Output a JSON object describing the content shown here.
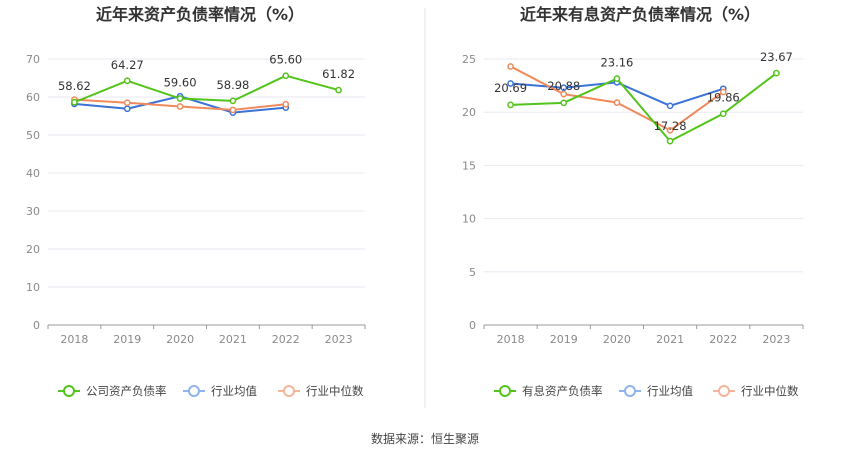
{
  "source_text": "数据来源：恒生聚源",
  "chart_data": [
    {
      "type": "line",
      "title": "近年来资产负债率情况（%）",
      "categories": [
        "2018",
        "2019",
        "2020",
        "2021",
        "2022",
        "2023"
      ],
      "ylim": [
        0,
        70
      ],
      "yticks": [
        0,
        10,
        20,
        30,
        40,
        50,
        60,
        70
      ],
      "labeled_series": "公司资产负债率",
      "series": [
        {
          "name": "公司资产负债率",
          "color": "#52c41a",
          "values": [
            58.62,
            64.27,
            59.6,
            58.98,
            65.6,
            61.82
          ],
          "labels": [
            "58.62",
            "64.27",
            "59.60",
            "58.98",
            "65.60",
            "61.82"
          ]
        },
        {
          "name": "行业均值",
          "color": "#3a72d8",
          "values": [
            58.2,
            56.9,
            60.2,
            55.9,
            57.2,
            null
          ]
        },
        {
          "name": "行业中位数",
          "color": "#f08a5d",
          "values": [
            59.3,
            58.5,
            57.5,
            56.6,
            58.1,
            null
          ]
        }
      ]
    },
    {
      "type": "line",
      "title": "近年来有息资产负债率情况（%）",
      "categories": [
        "2018",
        "2019",
        "2020",
        "2021",
        "2022",
        "2023"
      ],
      "ylim": [
        0,
        25
      ],
      "yticks": [
        0,
        5,
        10,
        15,
        20,
        25
      ],
      "labeled_series": "有息资产负债率",
      "series": [
        {
          "name": "有息资产负债率",
          "color": "#52c41a",
          "values": [
            20.69,
            20.88,
            23.16,
            17.28,
            19.86,
            23.67
          ],
          "labels": [
            "20.69",
            "20.88",
            "23.16",
            "17.28",
            "19.86",
            "23.67"
          ]
        },
        {
          "name": "行业均值",
          "color": "#3a72d8",
          "values": [
            22.7,
            22.3,
            22.8,
            20.6,
            22.2,
            null
          ]
        },
        {
          "name": "行业中位数",
          "color": "#f08a5d",
          "values": [
            24.3,
            21.7,
            20.9,
            18.3,
            21.9,
            null
          ]
        }
      ]
    }
  ]
}
